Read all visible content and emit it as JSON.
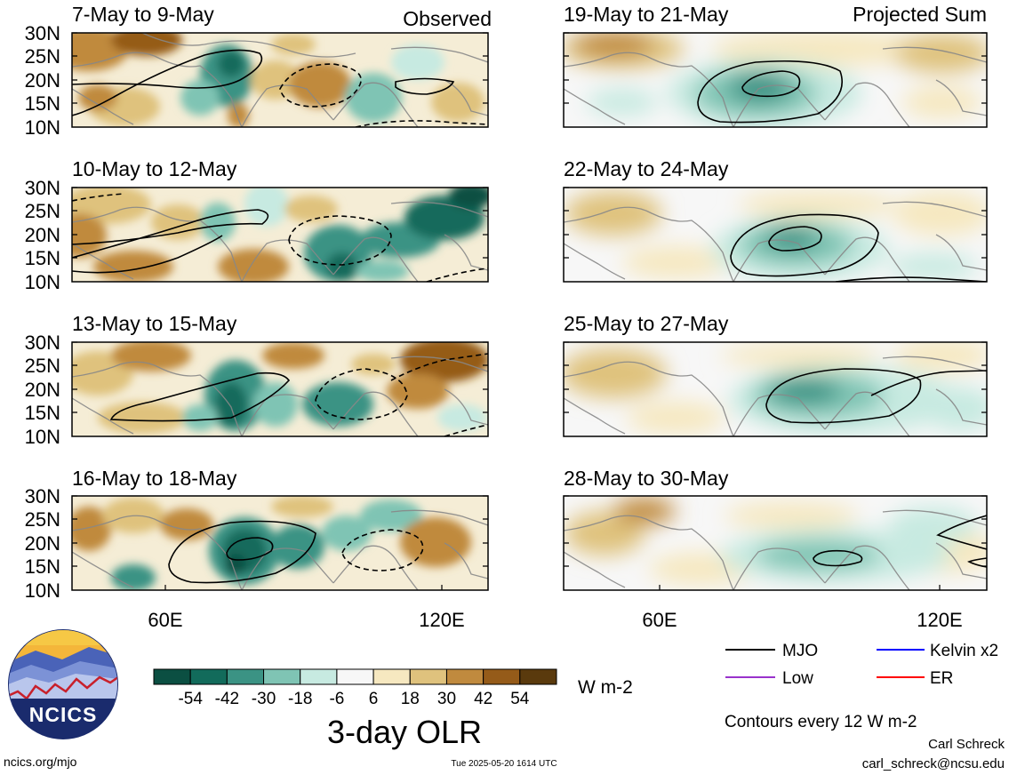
{
  "headers": {
    "left": "Observed",
    "right": "Projected Sum"
  },
  "panels_left": [
    {
      "date_range": "7-May to 9-May"
    },
    {
      "date_range": "10-May to 12-May"
    },
    {
      "date_range": "13-May to 15-May"
    },
    {
      "date_range": "16-May to 18-May"
    }
  ],
  "panels_right": [
    {
      "date_range": "19-May to 21-May"
    },
    {
      "date_range": "22-May to 24-May"
    },
    {
      "date_range": "25-May to 27-May"
    },
    {
      "date_range": "28-May to 30-May"
    }
  ],
  "lat_labels": [
    "30N",
    "25N",
    "20N",
    "15N",
    "10N"
  ],
  "lon_labels": [
    "60E",
    "120E"
  ],
  "colorbar": {
    "tick_labels": [
      "-54",
      "-42",
      "-30",
      "-18",
      "-6",
      "6",
      "18",
      "30",
      "42",
      "54"
    ],
    "colors": [
      "#0b4f42",
      "#126b5b",
      "#3b9384",
      "#7fc4b4",
      "#c7eae1",
      "#f7f7f7",
      "#f6e8c0",
      "#dfc27d",
      "#c08a3e",
      "#955b19",
      "#5a3a0d"
    ],
    "units": "W m-2",
    "title": "3-day OLR"
  },
  "legend": {
    "items": [
      {
        "label": "MJO",
        "color": "#000000"
      },
      {
        "label": "Kelvin x2",
        "color": "#0000ff"
      },
      {
        "label": "Low",
        "color": "#9932cc"
      },
      {
        "label": "ER",
        "color": "#ff0000"
      }
    ],
    "contour_note": "Contours every 12 W m-2"
  },
  "footer": {
    "site": "ncics.org/mjo",
    "timestamp": "Tue 2025-05-20 1614 UTC",
    "author": "Carl Schreck",
    "email": "carl_schreck@ncsu.edu"
  },
  "logo_text": "NCICS"
}
